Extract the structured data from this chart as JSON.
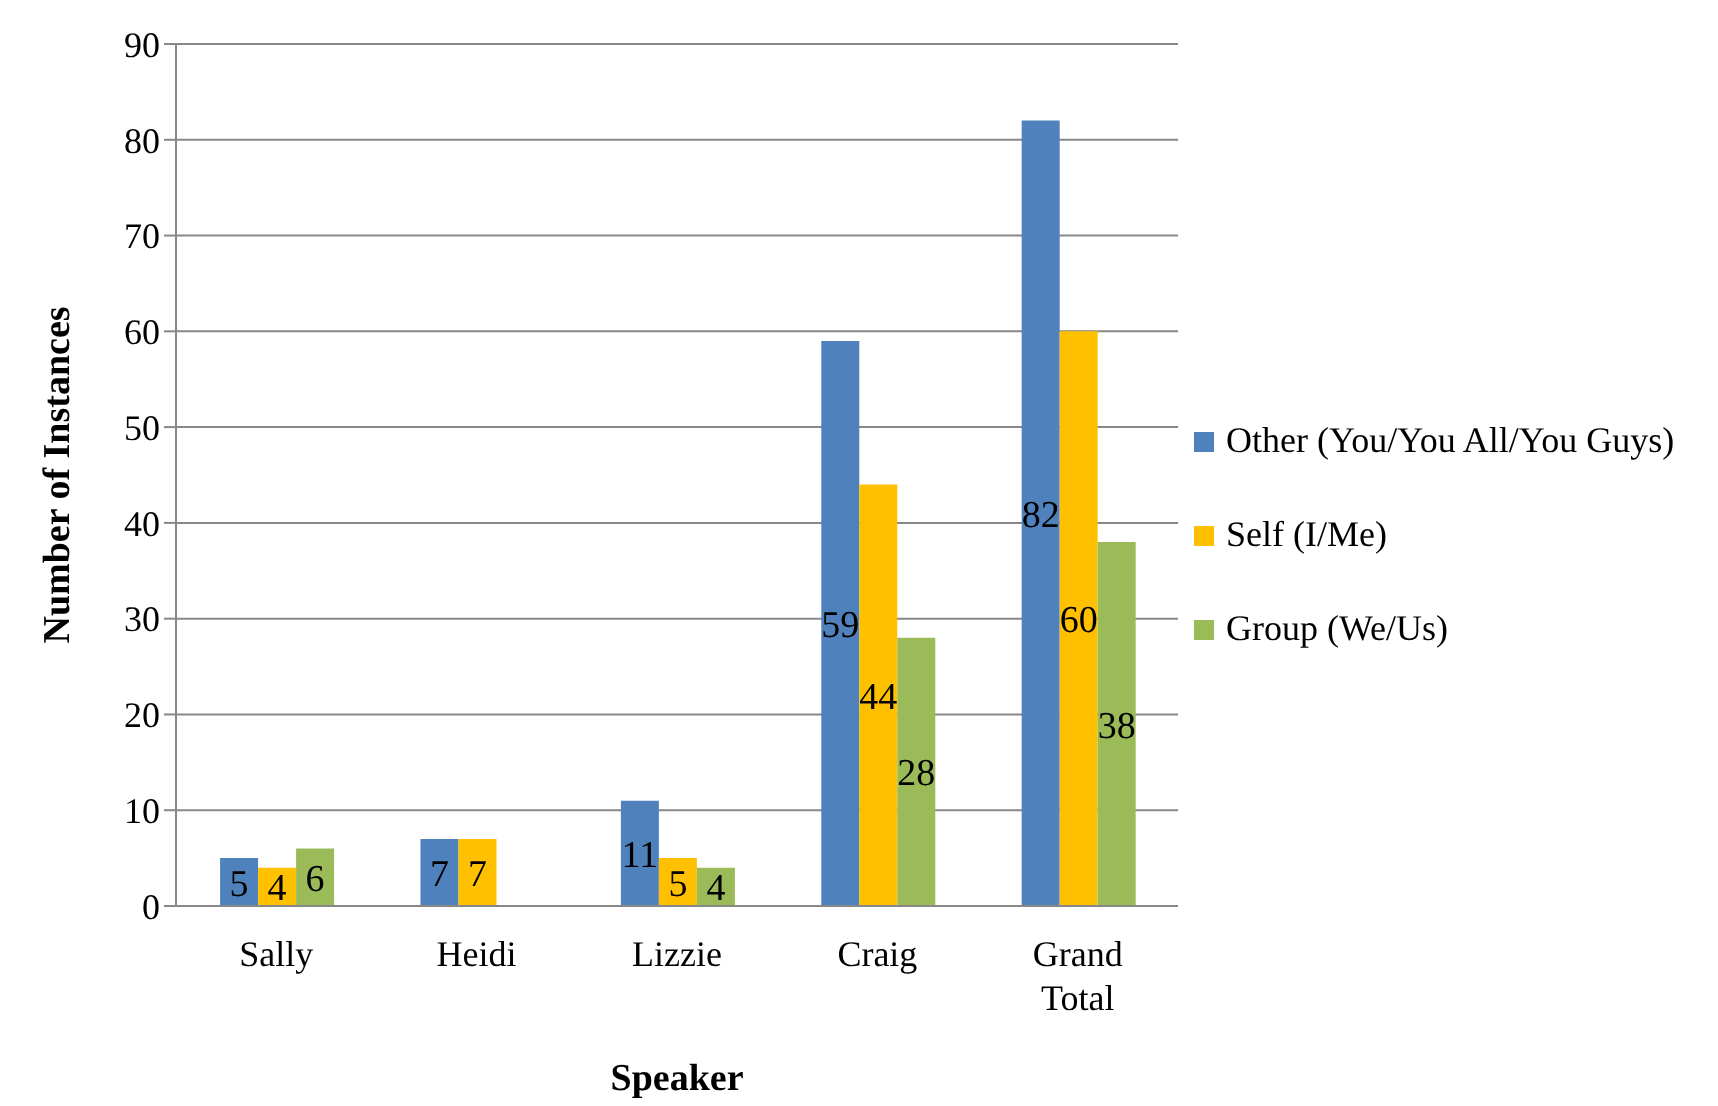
{
  "chart_data": {
    "type": "bar",
    "xlabel": "Speaker",
    "ylabel": "Number of Instances",
    "categories": [
      "Sally",
      "Heidi",
      "Lizzie",
      "Craig",
      "Grand Total"
    ],
    "series": [
      {
        "name": "Other (You/You All/You Guys)",
        "color": "#4f81bd",
        "values": [
          5,
          7,
          11,
          59,
          82
        ]
      },
      {
        "name": "Self (I/Me)",
        "color": "#ffc000",
        "values": [
          4,
          7,
          5,
          44,
          60
        ]
      },
      {
        "name": "Group (We/Us)",
        "color": "#9bbb59",
        "values": [
          6,
          null,
          4,
          28,
          38
        ]
      }
    ],
    "ylim": [
      0,
      90
    ],
    "yticks": [
      0,
      10,
      20,
      30,
      40,
      50,
      60,
      70,
      80,
      90
    ],
    "grid": "y",
    "legend": "right",
    "data_labels": true
  }
}
